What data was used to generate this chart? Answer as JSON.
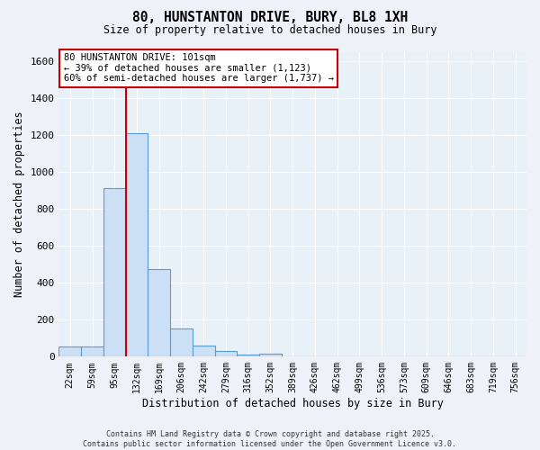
{
  "title1": "80, HUNSTANTON DRIVE, BURY, BL8 1XH",
  "title2": "Size of property relative to detached houses in Bury",
  "xlabel": "Distribution of detached houses by size in Bury",
  "ylabel": "Number of detached properties",
  "bins": [
    "22sqm",
    "59sqm",
    "95sqm",
    "132sqm",
    "169sqm",
    "206sqm",
    "242sqm",
    "279sqm",
    "316sqm",
    "352sqm",
    "389sqm",
    "426sqm",
    "462sqm",
    "499sqm",
    "536sqm",
    "573sqm",
    "609sqm",
    "646sqm",
    "683sqm",
    "719sqm",
    "756sqm"
  ],
  "values": [
    55,
    55,
    910,
    1210,
    475,
    155,
    60,
    30,
    10,
    15,
    0,
    0,
    0,
    0,
    0,
    0,
    0,
    0,
    0,
    0,
    0
  ],
  "bar_color": "#cce0f5",
  "bar_edge_color": "#5b9bd5",
  "bar_linewidth": 0.8,
  "vline_color": "#cc0000",
  "vline_x": 2.5,
  "ylim": [
    0,
    1650
  ],
  "yticks": [
    0,
    200,
    400,
    600,
    800,
    1000,
    1200,
    1400,
    1600
  ],
  "annotation_text": "80 HUNSTANTON DRIVE: 101sqm\n← 39% of detached houses are smaller (1,123)\n60% of semi-detached houses are larger (1,737) →",
  "annotation_box_color": "#ffffff",
  "annotation_box_edge": "#cc0000",
  "bg_color": "#e8f0f8",
  "fig_color": "#eef2f8",
  "footer1": "Contains HM Land Registry data © Crown copyright and database right 2025.",
  "footer2": "Contains public sector information licensed under the Open Government Licence v3.0."
}
